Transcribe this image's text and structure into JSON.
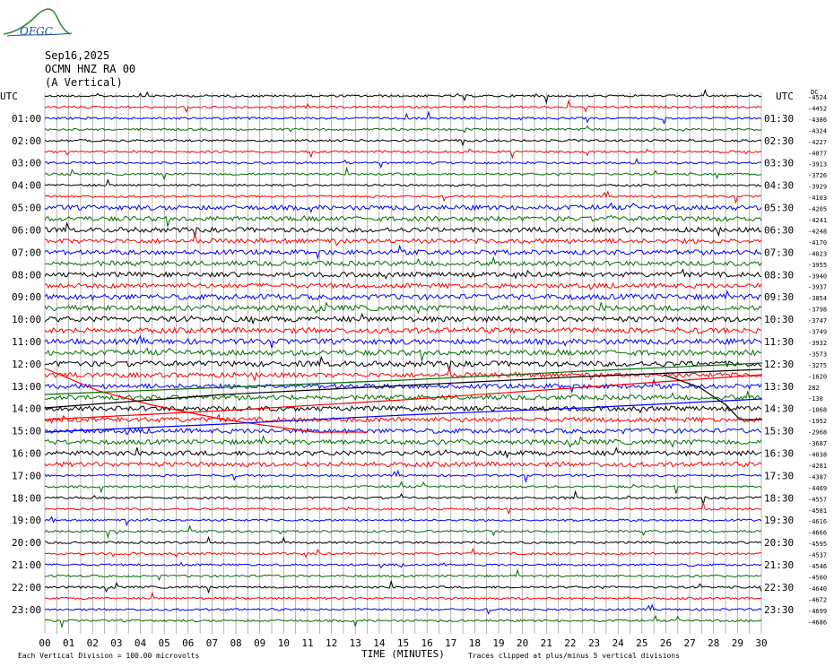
{
  "logo": {
    "text": "OFGC",
    "icon": "mountain-swoosh-logo"
  },
  "header": {
    "date": "Sep16,2025",
    "station": "OCMN HNZ RA 00",
    "component": "(A Vertical)"
  },
  "chart_data": {
    "type": "helicorder",
    "left_axis_label": "UTC",
    "right_axis_label": "UTC",
    "left_hour_labels": [
      "01:00",
      "02:00",
      "03:00",
      "04:00",
      "05:00",
      "06:00",
      "07:00",
      "08:00",
      "09:00",
      "10:00",
      "11:00",
      "12:00",
      "13:00",
      "14:00",
      "15:00",
      "16:00",
      "17:00",
      "18:00",
      "19:00",
      "20:00",
      "21:00",
      "22:00",
      "23:00"
    ],
    "right_hour_labels": [
      "01:30",
      "02:30",
      "03:30",
      "04:30",
      "05:30",
      "06:30",
      "07:30",
      "08:30",
      "09:30",
      "10:30",
      "11:30",
      "12:30",
      "13:30",
      "14:30",
      "15:30",
      "16:30",
      "17:30",
      "18:30",
      "19:30",
      "20:30",
      "21:30",
      "22:30",
      "23:30"
    ],
    "x_tick_labels": [
      "00",
      "01",
      "02",
      "03",
      "04",
      "05",
      "06",
      "07",
      "08",
      "09",
      "10",
      "11",
      "12",
      "13",
      "14",
      "15",
      "16",
      "17",
      "18",
      "19",
      "20",
      "21",
      "22",
      "23",
      "24",
      "25",
      "26",
      "27",
      "28",
      "29",
      "30"
    ],
    "xlabel": "TIME (MINUTES)",
    "xlim": [
      0,
      30
    ],
    "trace_colors": [
      "#000000",
      "#ff0000",
      "#0000ff",
      "#007000"
    ],
    "trace_offsets": [
      -4524,
      -4452,
      -4386,
      -4324,
      -4227,
      -4077,
      -3913,
      -3726,
      -3929,
      -4103,
      -4205,
      -4241,
      -4248,
      -4170,
      -4023,
      -3955,
      -3940,
      -3937,
      -3854,
      -3798,
      -3747,
      -3749,
      -3932,
      -3573,
      -3275,
      -1620,
      282,
      -130,
      -1068,
      -1952,
      -2968,
      -3687,
      -4038,
      -4281,
      -4387,
      -4469,
      -4557,
      -4581,
      -4616,
      -4666,
      -4595,
      -4537,
      -4546,
      -4560,
      -4640,
      -4672,
      -4699,
      -4686
    ],
    "top_right_note": "DC",
    "grid": true,
    "footer_left": "Each Vertical Division =  100.00 microvolts",
    "footer_right": "Traces clipped at plus/minus 5 vertical divisions"
  }
}
